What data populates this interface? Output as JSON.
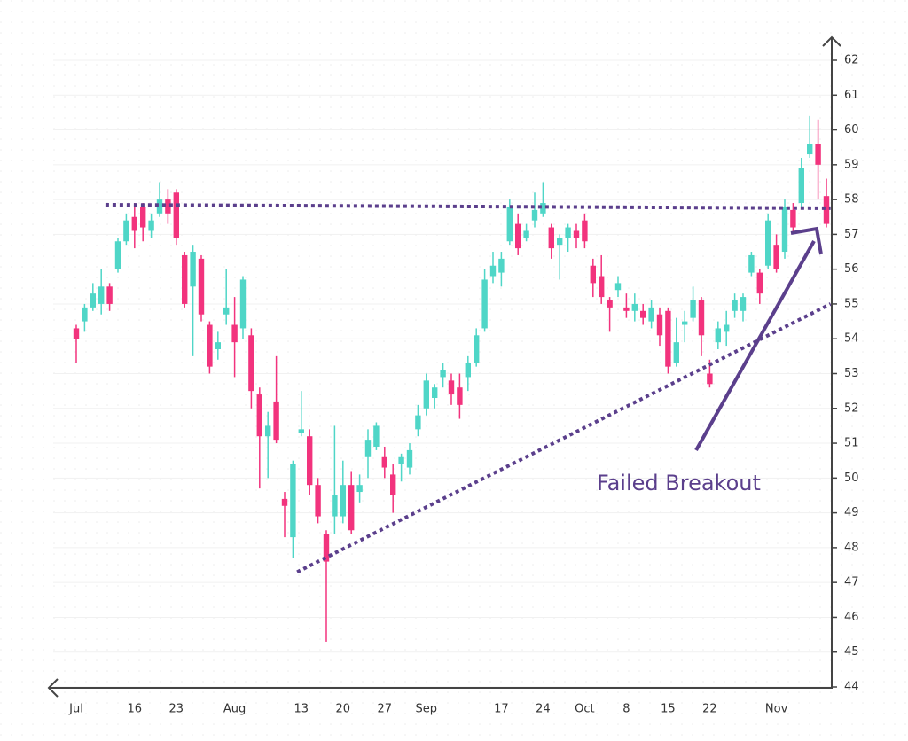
{
  "chart_data": {
    "type": "candlestick",
    "categories": [
      "Jul",
      null,
      null,
      null,
      null,
      null,
      null,
      "16",
      null,
      null,
      null,
      null,
      "23",
      null,
      null,
      null,
      null,
      null,
      null,
      "Aug",
      null,
      null,
      null,
      null,
      null,
      null,
      null,
      "13",
      null,
      null,
      null,
      null,
      "20",
      null,
      null,
      null,
      null,
      "27",
      null,
      null,
      null,
      null,
      "Sep",
      null,
      null,
      null,
      null,
      null,
      null,
      null,
      null,
      "17",
      null,
      null,
      null,
      null,
      "24",
      null,
      null,
      null,
      null,
      "Oct",
      null,
      null,
      null,
      null,
      "8",
      null,
      null,
      null,
      null,
      "15",
      null,
      null,
      null,
      null,
      "22",
      null,
      null,
      null,
      null,
      null,
      null,
      null,
      "Nov",
      null,
      null,
      null,
      null,
      null,
      null
    ],
    "open": [
      54.3,
      54.5,
      54.9,
      55.0,
      55.5,
      56.0,
      56.8,
      57.5,
      57.8,
      57.1,
      57.6,
      58.0,
      58.2,
      56.4,
      55.5,
      56.3,
      54.4,
      53.7,
      54.7,
      54.4,
      54.3,
      54.1,
      52.4,
      51.2,
      52.2,
      49.4,
      48.3,
      51.3,
      51.2,
      49.8,
      48.4,
      48.9,
      48.9,
      49.8,
      49.6,
      50.6,
      50.9,
      50.6,
      50.1,
      50.4,
      50.3,
      51.4,
      52.0,
      52.3,
      52.9,
      52.8,
      52.6,
      52.9,
      53.3,
      54.3,
      55.8,
      55.9,
      56.8,
      57.3,
      56.9,
      57.4,
      57.6,
      57.2,
      56.7,
      56.9,
      57.1,
      57.4,
      56.1,
      55.8,
      55.1,
      55.4,
      54.9,
      54.8,
      54.8,
      54.5,
      54.7,
      54.8,
      53.3,
      54.4,
      54.6,
      55.1,
      53.0,
      53.9,
      54.2,
      54.8,
      54.8,
      55.9,
      55.9,
      56.1,
      56.7,
      56.5,
      57.7,
      57.9,
      59.3,
      59.6,
      58.1
    ],
    "high": [
      54.4,
      55.0,
      55.6,
      56.0,
      55.6,
      56.9,
      57.6,
      57.9,
      57.9,
      57.6,
      58.5,
      58.3,
      58.3,
      56.5,
      56.7,
      56.4,
      54.5,
      54.2,
      56.0,
      55.2,
      55.8,
      54.3,
      52.6,
      51.9,
      53.5,
      49.6,
      50.5,
      52.5,
      51.4,
      50.0,
      48.5,
      51.5,
      50.5,
      50.2,
      50.1,
      51.4,
      51.6,
      50.9,
      50.4,
      50.7,
      51.0,
      52.1,
      53.0,
      52.7,
      53.3,
      53.0,
      53.0,
      53.5,
      54.3,
      56.0,
      56.5,
      56.5,
      58.0,
      57.6,
      57.3,
      58.2,
      58.5,
      57.3,
      57.0,
      57.3,
      57.3,
      57.6,
      56.3,
      56.4,
      55.2,
      55.8,
      55.3,
      55.3,
      55.0,
      55.1,
      54.9,
      54.9,
      54.6,
      54.8,
      55.5,
      55.2,
      53.4,
      54.5,
      54.8,
      55.3,
      55.3,
      56.5,
      56.0,
      57.6,
      57.0,
      58.0,
      57.9,
      59.2,
      60.4,
      60.3,
      58.6
    ],
    "low": [
      53.3,
      54.2,
      54.8,
      54.7,
      54.8,
      55.9,
      56.7,
      56.6,
      56.8,
      56.9,
      57.5,
      57.3,
      56.7,
      54.9,
      53.5,
      54.5,
      53.0,
      53.4,
      54.4,
      52.9,
      54.0,
      52.0,
      49.7,
      50.0,
      51.0,
      48.3,
      47.7,
      51.2,
      49.5,
      48.7,
      45.3,
      48.4,
      48.7,
      48.4,
      49.3,
      50.0,
      50.8,
      50.0,
      49.0,
      49.9,
      50.1,
      51.2,
      51.8,
      52.0,
      52.6,
      52.1,
      51.7,
      52.5,
      53.2,
      54.2,
      55.6,
      55.5,
      56.7,
      56.4,
      56.8,
      57.2,
      57.5,
      56.3,
      55.7,
      56.5,
      56.6,
      56.6,
      55.2,
      55.0,
      54.2,
      55.2,
      54.6,
      54.5,
      54.4,
      54.3,
      53.8,
      53.0,
      53.2,
      53.9,
      54.5,
      53.5,
      52.6,
      53.7,
      53.8,
      54.6,
      54.5,
      55.8,
      55.0,
      56.0,
      55.9,
      56.3,
      57.0,
      57.8,
      59.2,
      58.0,
      57.2
    ],
    "close": [
      54.0,
      54.9,
      55.3,
      55.5,
      55.0,
      56.8,
      57.4,
      57.1,
      57.2,
      57.4,
      58.0,
      57.6,
      56.9,
      55.0,
      56.5,
      54.7,
      53.2,
      53.9,
      54.9,
      53.9,
      55.7,
      52.5,
      51.2,
      51.5,
      51.1,
      49.2,
      50.4,
      51.4,
      49.8,
      48.9,
      47.6,
      49.5,
      49.8,
      48.5,
      49.8,
      51.1,
      51.5,
      50.3,
      49.5,
      50.6,
      50.8,
      51.8,
      52.8,
      52.6,
      53.1,
      52.4,
      52.1,
      53.3,
      54.1,
      55.7,
      56.1,
      56.3,
      57.8,
      56.6,
      57.1,
      57.7,
      57.9,
      56.6,
      56.9,
      57.2,
      56.9,
      56.8,
      55.6,
      55.2,
      54.9,
      55.6,
      54.8,
      55.0,
      54.6,
      54.9,
      54.1,
      53.2,
      53.9,
      54.5,
      55.1,
      54.1,
      52.7,
      54.3,
      54.4,
      55.1,
      55.2,
      56.4,
      55.3,
      57.4,
      56.0,
      57.8,
      57.2,
      58.9,
      59.6,
      59.0,
      57.3
    ],
    "up_color": "#4fd6c7",
    "down_color": "#f2337d",
    "ylim": [
      44,
      62
    ],
    "yticks": [
      44,
      45,
      46,
      47,
      48,
      49,
      50,
      51,
      52,
      53,
      54,
      55,
      56,
      57,
      58,
      59,
      60,
      61,
      62
    ],
    "grid": true,
    "lines": [
      {
        "from": [
          3.5,
          57.85
        ],
        "to": [
          90.5,
          57.75
        ],
        "color": "#5b3f8c"
      },
      {
        "from": [
          26.5,
          47.3
        ],
        "to": [
          90.5,
          55.0
        ],
        "color": "#5b3f8c"
      }
    ],
    "annotation": "Failed Breakout"
  }
}
